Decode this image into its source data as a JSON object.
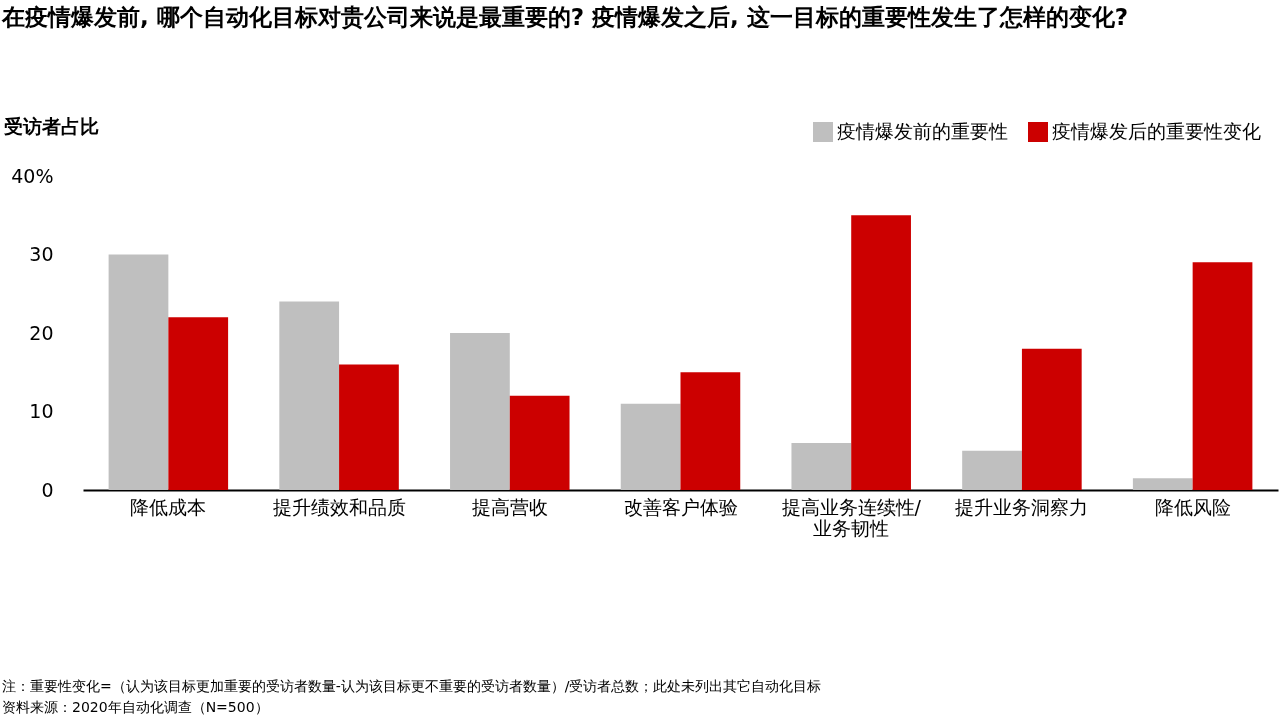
{
  "chart_data": {
    "type": "bar",
    "title": "在疫情爆发前, 哪个自动化目标对贵公司来说是最重要的? 疫情爆发之后, 这一目标的重要性发生了怎样的变化?",
    "ylabel": "受访者占比",
    "categories": [
      "降低成本",
      "提升绩效和品质",
      "提高营收",
      "改善客户体验",
      "提高业务连续性/业务韧性",
      "提升业务洞察力",
      "降低风险"
    ],
    "series": [
      {
        "name": "疫情爆发前的重要性",
        "color": "#bfbfbf",
        "values": [
          30,
          24,
          20,
          11,
          6,
          5,
          1.5
        ]
      },
      {
        "name": "疫情爆发后的重要性变化",
        "color": "#cc0000",
        "values": [
          22,
          16,
          12,
          15,
          35,
          18,
          29
        ]
      }
    ],
    "ylim": [
      0,
      40
    ],
    "yticks": [
      0,
      10,
      20,
      30,
      {
        "value": 40,
        "label": "40%"
      }
    ],
    "grid": false,
    "legend": "top right",
    "annotations": [
      "注：重要性变化=（认为该目标更加重要的受访者数量-认为该目标更不重要的受访者数量）/受访者总数；此处未列出其它自动化目标",
      "资料来源：2020年自动化调查（N=500）"
    ]
  }
}
